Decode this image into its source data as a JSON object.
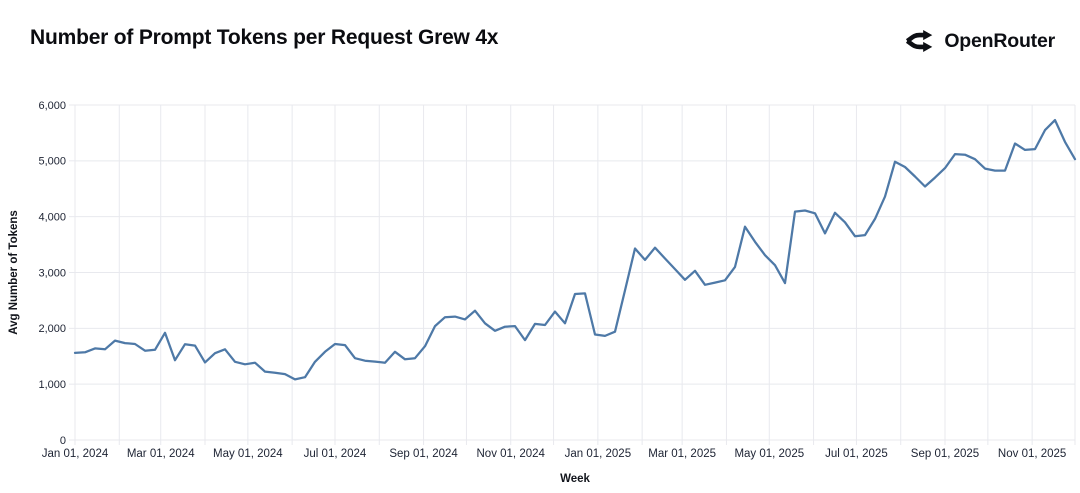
{
  "header": {
    "title": "Number of Prompt Tokens per Request Grew 4x",
    "logo_text": "OpenRouter"
  },
  "chart_data": {
    "type": "line",
    "title": "Number of Prompt Tokens per Request Grew 4x",
    "xlabel": "Week",
    "ylabel": "Avg Number of Tokens",
    "ylim": [
      0,
      6000
    ],
    "y_tick_values": [
      0,
      1000,
      2000,
      3000,
      4000,
      5000,
      6000
    ],
    "y_tick_labels": [
      "0",
      "1,000",
      "2,000",
      "3,000",
      "4,000",
      "5,000",
      "6,000"
    ],
    "x_start_date": "2024-01-01",
    "x_interval_days": 7,
    "x_end_date": "2025-12-01",
    "x_tick_dates": [
      "2024-01-01",
      "2024-03-01",
      "2024-05-01",
      "2024-07-01",
      "2024-09-01",
      "2024-11-01",
      "2025-01-01",
      "2025-03-01",
      "2025-05-01",
      "2025-07-01",
      "2025-09-01",
      "2025-11-01"
    ],
    "x_tick_labels": [
      "Jan 01, 2024",
      "Mar 01, 2024",
      "May 01, 2024",
      "Jul 01, 2024",
      "Sep 01, 2024",
      "Nov 01, 2024",
      "Jan 01, 2025",
      "Mar 01, 2025",
      "May 01, 2025",
      "Jul 01, 2025",
      "Sep 01, 2025",
      "Nov 01, 2025"
    ],
    "grid": true,
    "legend_position": "none",
    "line_color": "#4e79a7",
    "grid_color": "#e8e9ee",
    "tick_text_color": "#1d2333",
    "axis_title_color": "#12151c",
    "values": [
      1560,
      1570,
      1640,
      1625,
      1780,
      1735,
      1720,
      1600,
      1615,
      1920,
      1430,
      1715,
      1690,
      1390,
      1555,
      1625,
      1400,
      1355,
      1385,
      1225,
      1205,
      1180,
      1085,
      1125,
      1400,
      1580,
      1720,
      1700,
      1465,
      1420,
      1405,
      1385,
      1580,
      1445,
      1465,
      1680,
      2040,
      2200,
      2210,
      2160,
      2315,
      2090,
      1955,
      2030,
      2040,
      1790,
      2080,
      2060,
      2300,
      2090,
      2615,
      2625,
      1890,
      1865,
      1940,
      2680,
      3430,
      3225,
      3445,
      3250,
      3060,
      2870,
      3030,
      2780,
      2820,
      2860,
      3100,
      3820,
      3550,
      3310,
      3130,
      2810,
      4090,
      4110,
      4060,
      3700,
      4070,
      3900,
      3650,
      3670,
      3960,
      4360,
      4985,
      4890,
      4720,
      4540,
      4700,
      4870,
      5120,
      5110,
      5030,
      4860,
      4825,
      4825,
      5310,
      5195,
      5210,
      5550,
      5730,
      5340,
      5030
    ]
  }
}
